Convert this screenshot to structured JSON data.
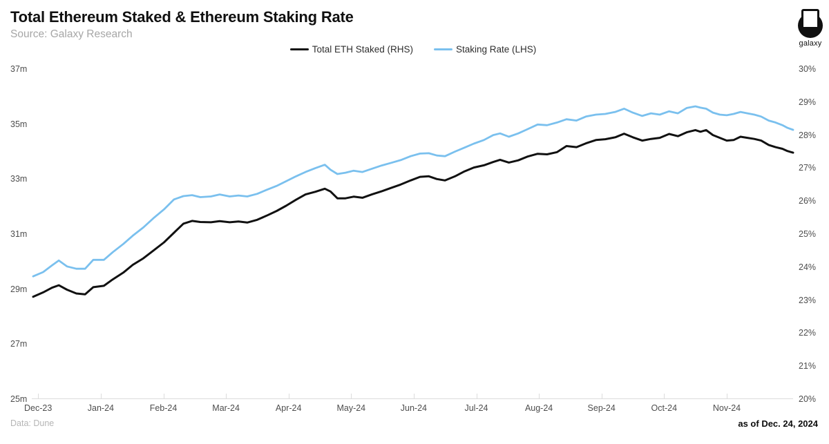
{
  "header": {
    "title": "Total Ethereum Staked & Ethereum Staking Rate",
    "source": "Source: Galaxy Research",
    "logo_text": "galaxy"
  },
  "legend": [
    {
      "label": "Total ETH Staked (RHS)"
    },
    {
      "label": "Staking Rate (LHS)"
    }
  ],
  "footer": {
    "data_note": "Data: Dune",
    "as_of": "as of Dec. 24, 2024"
  },
  "chart_data": {
    "type": "line",
    "title": "Total Ethereum Staked & Ethereum Staking Rate",
    "grid": false,
    "legend_position": "top-center",
    "x_axis": {
      "tick_labels": [
        "Dec-23",
        "Jan-24",
        "Feb-24",
        "Mar-24",
        "Apr-24",
        "May-24",
        "Jun-24",
        "Jul-24",
        "Aug-24",
        "Sep-24",
        "Oct-24",
        "Nov-24"
      ],
      "tick_positions": [
        0,
        1,
        2,
        3,
        4,
        5,
        6,
        7,
        8,
        9,
        10,
        11
      ],
      "range": [
        -0.08,
        12.06
      ],
      "x_unit": "months since Dec-23 tick"
    },
    "left_axis": {
      "tick_labels": [
        "37m",
        "35m",
        "33m",
        "31m",
        "29m",
        "27m",
        "25m"
      ],
      "tick_values": [
        37,
        35,
        33,
        31,
        29,
        27,
        25
      ],
      "range": [
        25,
        37
      ],
      "unit": "m"
    },
    "right_axis": {
      "tick_labels": [
        "30%",
        "29%",
        "28%",
        "27%",
        "26%",
        "25%",
        "24%",
        "23%",
        "22%",
        "21%",
        "20%"
      ],
      "tick_values": [
        30,
        29,
        28,
        27,
        26,
        25,
        24,
        23,
        22,
        21,
        20
      ],
      "range": [
        20,
        30
      ],
      "unit": "%"
    },
    "x": [
      -0.08,
      0.08,
      0.22,
      0.33,
      0.46,
      0.61,
      0.75,
      0.88,
      1.05,
      1.19,
      1.36,
      1.51,
      1.68,
      1.84,
      2.01,
      2.17,
      2.32,
      2.46,
      2.59,
      2.76,
      2.9,
      3.06,
      3.2,
      3.34,
      3.5,
      3.65,
      3.81,
      3.96,
      4.12,
      4.27,
      4.43,
      4.58,
      4.67,
      4.78,
      4.91,
      5.04,
      5.18,
      5.33,
      5.49,
      5.64,
      5.79,
      5.95,
      6.1,
      6.24,
      6.37,
      6.5,
      6.66,
      6.81,
      6.96,
      7.12,
      7.27,
      7.38,
      7.52,
      7.67,
      7.82,
      7.98,
      8.13,
      8.29,
      8.44,
      8.6,
      8.75,
      8.91,
      9.06,
      9.22,
      9.36,
      9.5,
      9.65,
      9.79,
      9.93,
      10.08,
      10.22,
      10.36,
      10.5,
      10.58,
      10.67,
      10.78,
      10.89,
      11.0,
      11.11,
      11.22,
      11.33,
      11.44,
      11.55,
      11.67,
      11.78,
      11.89,
      11.97,
      12.06
    ],
    "series": [
      {
        "name": "Total ETH Staked (RHS)",
        "axis": "left",
        "unit": "million ETH",
        "color": "#111111",
        "values": [
          28.72,
          28.88,
          29.05,
          29.14,
          28.98,
          28.84,
          28.81,
          29.07,
          29.12,
          29.35,
          29.6,
          29.88,
          30.12,
          30.4,
          30.7,
          31.05,
          31.38,
          31.48,
          31.44,
          31.43,
          31.47,
          31.43,
          31.46,
          31.42,
          31.52,
          31.67,
          31.84,
          32.03,
          32.25,
          32.44,
          32.54,
          32.65,
          32.55,
          32.3,
          32.3,
          32.36,
          32.32,
          32.44,
          32.56,
          32.68,
          32.8,
          32.95,
          33.08,
          33.1,
          33.0,
          32.95,
          33.1,
          33.28,
          33.42,
          33.5,
          33.62,
          33.7,
          33.6,
          33.68,
          33.82,
          33.92,
          33.9,
          33.98,
          34.2,
          34.16,
          34.3,
          34.42,
          34.45,
          34.52,
          34.65,
          34.52,
          34.4,
          34.46,
          34.5,
          34.64,
          34.56,
          34.7,
          34.78,
          34.72,
          34.78,
          34.6,
          34.5,
          34.4,
          34.42,
          34.54,
          34.5,
          34.46,
          34.4,
          34.24,
          34.16,
          34.1,
          34.02,
          33.96
        ]
      },
      {
        "name": "Staking Rate (LHS)",
        "axis": "right",
        "unit": "%",
        "color": "#7ac0ee",
        "values": [
          23.72,
          23.85,
          24.05,
          24.2,
          24.02,
          23.95,
          23.95,
          24.22,
          24.22,
          24.45,
          24.7,
          24.95,
          25.2,
          25.48,
          25.75,
          26.05,
          26.15,
          26.18,
          26.12,
          26.14,
          26.2,
          26.14,
          26.17,
          26.14,
          26.22,
          26.34,
          26.46,
          26.6,
          26.75,
          26.88,
          27.0,
          27.1,
          26.95,
          26.82,
          26.86,
          26.92,
          26.88,
          26.98,
          27.08,
          27.16,
          27.24,
          27.36,
          27.44,
          27.45,
          27.38,
          27.36,
          27.5,
          27.62,
          27.74,
          27.85,
          28.0,
          28.05,
          27.95,
          28.05,
          28.18,
          28.32,
          28.3,
          28.38,
          28.48,
          28.44,
          28.56,
          28.62,
          28.64,
          28.7,
          28.8,
          28.68,
          28.58,
          28.66,
          28.62,
          28.72,
          28.66,
          28.82,
          28.87,
          28.83,
          28.8,
          28.68,
          28.62,
          28.6,
          28.64,
          28.7,
          28.66,
          28.62,
          28.56,
          28.44,
          28.38,
          28.3,
          28.22,
          28.16
        ]
      }
    ]
  }
}
